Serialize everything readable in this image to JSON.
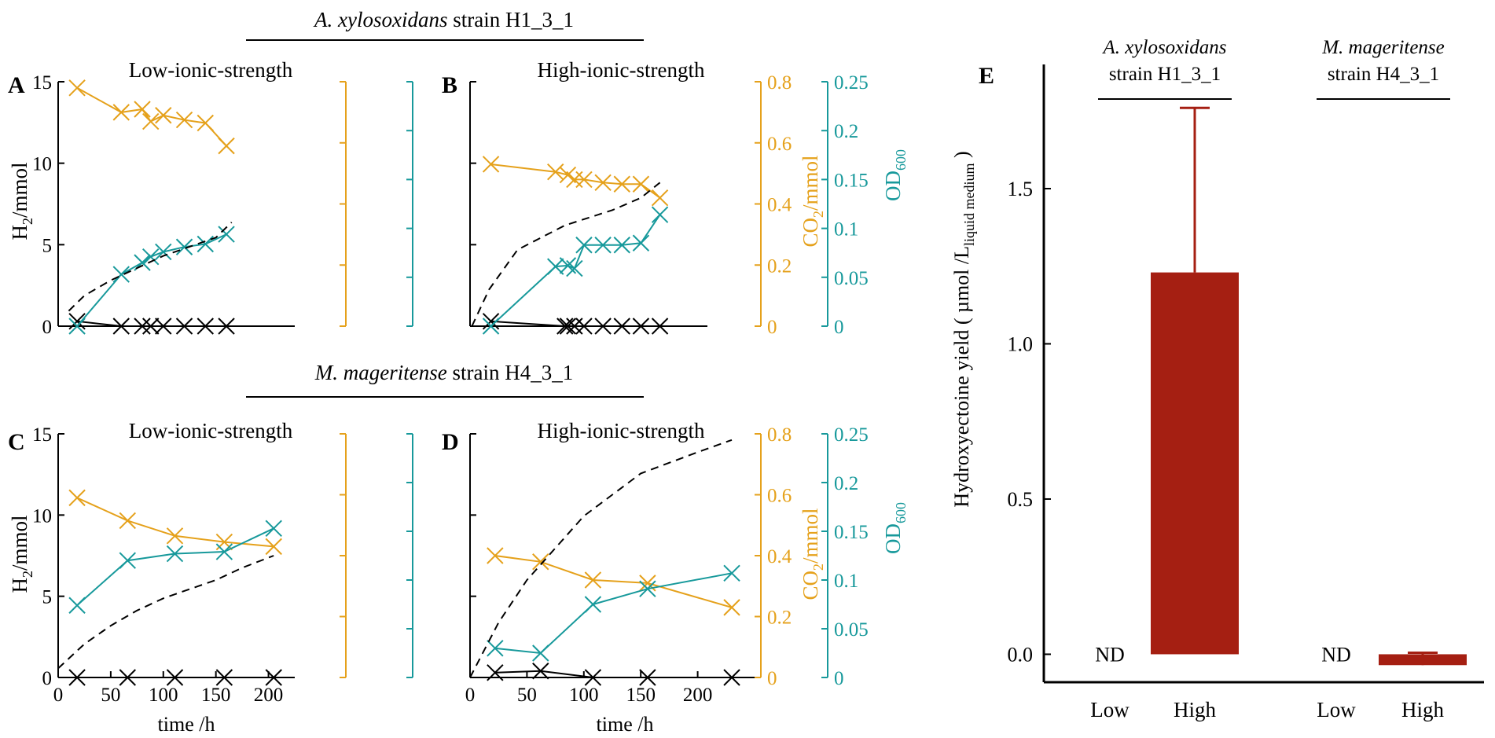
{
  "colors": {
    "h2": "#000000",
    "co2": "#e5a11b",
    "od": "#17999b",
    "dashed": "#000000",
    "bar": "#a51f12"
  },
  "headers": {
    "top": {
      "italic": "A. xylosoxidans",
      "rest": " strain H1_3_1"
    },
    "bottom": {
      "italic": "M. mageritense",
      "rest": " strain H4_3_1"
    }
  },
  "axis_labels": {
    "h2": [
      "H",
      "2",
      "/mmol"
    ],
    "co2": [
      "CO",
      "2",
      "/mmol"
    ],
    "od": [
      "OD",
      "600"
    ],
    "time": "time /h",
    "yield": [
      "Hydroxyectoine yield ( µmol /L",
      "liquid medium",
      " )"
    ]
  },
  "chart_data": [
    {
      "id": "A",
      "type": "line",
      "panel_label": "A",
      "title": "Low-ionic-strength",
      "xlabel": "",
      "xlim": [
        0,
        225
      ],
      "x_ticks": [],
      "h2_ylim": [
        0,
        15
      ],
      "h2_ticks": [
        0,
        5,
        10,
        15
      ],
      "co2_ylim": [
        0,
        0.8
      ],
      "od_ylim": [
        0,
        0.25
      ],
      "show_right_tick_labels": false,
      "series": [
        {
          "name": "H2",
          "axis": "h2",
          "x": [
            18,
            60,
            80,
            88,
            100,
            120,
            140,
            160
          ],
          "values": [
            0.3,
            0,
            0,
            0,
            0,
            0,
            0,
            0
          ]
        },
        {
          "name": "CO2",
          "axis": "co2",
          "x": [
            18,
            60,
            80,
            88,
            100,
            120,
            140,
            160
          ],
          "values": [
            0.78,
            0.7,
            0.71,
            0.67,
            0.69,
            0.675,
            0.665,
            0.59
          ]
        },
        {
          "name": "OD600",
          "axis": "od",
          "x": [
            18,
            60,
            80,
            88,
            100,
            120,
            140,
            160
          ],
          "values": [
            0,
            0.053,
            0.065,
            0.071,
            0.076,
            0.081,
            0.084,
            0.094
          ]
        },
        {
          "name": "dashed",
          "axis": "co2",
          "style": "dashed",
          "x": [
            10,
            25,
            50,
            75,
            100,
            125,
            150,
            165
          ],
          "values": [
            0.05,
            0.1,
            0.15,
            0.19,
            0.23,
            0.26,
            0.29,
            0.34
          ]
        }
      ]
    },
    {
      "id": "B",
      "type": "line",
      "panel_label": "B",
      "title": "High-ionic-strength",
      "xlabel": "",
      "xlim": [
        0,
        250
      ],
      "x_ticks": [],
      "h2_ylim": [
        0,
        15
      ],
      "h2_ticks": [],
      "co2_ylim": [
        0,
        0.8
      ],
      "co2_ticks": [
        0,
        0.2,
        0.4,
        0.6,
        0.8
      ],
      "od_ylim": [
        0,
        0.25
      ],
      "od_ticks": [
        0,
        0.05,
        0.1,
        0.15,
        0.2,
        0.25
      ],
      "show_right_tick_labels": true,
      "series": [
        {
          "name": "H2",
          "axis": "h2",
          "x": [
            22,
            100,
            103,
            110,
            120,
            140,
            160,
            180,
            200
          ],
          "values": [
            0.3,
            0,
            0,
            0,
            0,
            0,
            0,
            0,
            0
          ]
        },
        {
          "name": "CO2",
          "axis": "co2",
          "x": [
            22,
            90,
            103,
            110,
            120,
            140,
            160,
            180,
            200
          ],
          "values": [
            0.53,
            0.505,
            0.495,
            0.48,
            0.48,
            0.47,
            0.465,
            0.465,
            0.42
          ]
        },
        {
          "name": "OD600",
          "axis": "od",
          "x": [
            22,
            90,
            103,
            110,
            120,
            140,
            160,
            180,
            200
          ],
          "values": [
            0,
            0.061,
            0.062,
            0.059,
            0.083,
            0.083,
            0.083,
            0.085,
            0.114
          ]
        },
        {
          "name": "dashed",
          "axis": "co2",
          "style": "dashed",
          "x": [
            2,
            20,
            50,
            100,
            150,
            180,
            200
          ],
          "values": [
            0,
            0.12,
            0.25,
            0.33,
            0.38,
            0.42,
            0.47
          ]
        }
      ]
    },
    {
      "id": "C",
      "type": "line",
      "panel_label": "C",
      "title": "Low-ionic-strength",
      "xlabel": "time /h",
      "xlim": [
        0,
        225
      ],
      "x_ticks": [
        0,
        50,
        100,
        150,
        200
      ],
      "h2_ylim": [
        0,
        15
      ],
      "h2_ticks": [
        0,
        5,
        10,
        15
      ],
      "co2_ylim": [
        0,
        0.8
      ],
      "od_ylim": [
        0,
        0.25
      ],
      "show_right_tick_labels": false,
      "series": [
        {
          "name": "H2",
          "axis": "h2",
          "x": [
            18,
            66,
            111,
            158,
            205
          ],
          "values": [
            0,
            0,
            0,
            0,
            0
          ]
        },
        {
          "name": "CO2",
          "axis": "co2",
          "x": [
            18,
            66,
            111,
            158,
            205
          ],
          "values": [
            0.59,
            0.515,
            0.465,
            0.445,
            0.43
          ]
        },
        {
          "name": "OD600",
          "axis": "od",
          "x": [
            18,
            66,
            111,
            158,
            205
          ],
          "values": [
            0.074,
            0.12,
            0.127,
            0.129,
            0.153
          ]
        },
        {
          "name": "dashed",
          "axis": "co2",
          "style": "dashed",
          "x": [
            0,
            25,
            50,
            75,
            100,
            125,
            150,
            175,
            205
          ],
          "values": [
            0.03,
            0.11,
            0.17,
            0.22,
            0.26,
            0.29,
            0.32,
            0.36,
            0.4
          ]
        }
      ]
    },
    {
      "id": "D",
      "type": "line",
      "panel_label": "D",
      "title": "High-ionic-strength",
      "xlabel": "time /h",
      "xlim": [
        0,
        250
      ],
      "x_ticks": [
        0,
        50,
        100,
        150,
        200
      ],
      "h2_ylim": [
        0,
        15
      ],
      "h2_ticks": [],
      "co2_ylim": [
        0,
        0.8
      ],
      "co2_ticks": [
        0,
        0.2,
        0.4,
        0.6,
        0.8
      ],
      "od_ylim": [
        0,
        0.25
      ],
      "od_ticks": [
        0,
        0.05,
        0.1,
        0.15,
        0.2,
        0.25
      ],
      "show_right_tick_labels": true,
      "series": [
        {
          "name": "H2",
          "axis": "h2",
          "x": [
            22,
            62,
            108,
            156,
            230
          ],
          "values": [
            0.3,
            0.4,
            0,
            0,
            0
          ]
        },
        {
          "name": "CO2",
          "axis": "co2",
          "x": [
            22,
            62,
            108,
            156,
            230
          ],
          "values": [
            0.4,
            0.38,
            0.32,
            0.31,
            0.23
          ]
        },
        {
          "name": "OD600",
          "axis": "od",
          "x": [
            22,
            62,
            108,
            156,
            230
          ],
          "values": [
            0.03,
            0.025,
            0.075,
            0.091,
            0.107
          ]
        },
        {
          "name": "dashed",
          "axis": "co2",
          "style": "dashed",
          "x": [
            0,
            25,
            50,
            100,
            150,
            200,
            230
          ],
          "values": [
            0,
            0.18,
            0.32,
            0.53,
            0.67,
            0.74,
            0.78
          ]
        }
      ]
    },
    {
      "id": "E",
      "type": "bar",
      "panel_label": "E",
      "ylabel": "Hydroxyectoine yield ( µmol /Lliquid medium )",
      "ylim": [
        -0.09,
        1.9
      ],
      "y_ticks": [
        0.0,
        0.5,
        1.0,
        1.5
      ],
      "y_tick_labels": [
        "0.0",
        "0.5",
        "1.0",
        "1.5"
      ],
      "categories": [
        "Low",
        "High",
        "Low",
        "High"
      ],
      "values": [
        null,
        1.23,
        null,
        -0.035
      ],
      "errors": [
        null,
        0.53,
        null,
        0.04
      ],
      "value_labels": [
        "ND",
        "",
        "ND",
        ""
      ],
      "groups": [
        {
          "italic": "A. xylosoxidans",
          "line2": "strain H1_3_1"
        },
        {
          "italic": "M. mageritense",
          "line2": "strain H4_3_1"
        }
      ]
    }
  ]
}
